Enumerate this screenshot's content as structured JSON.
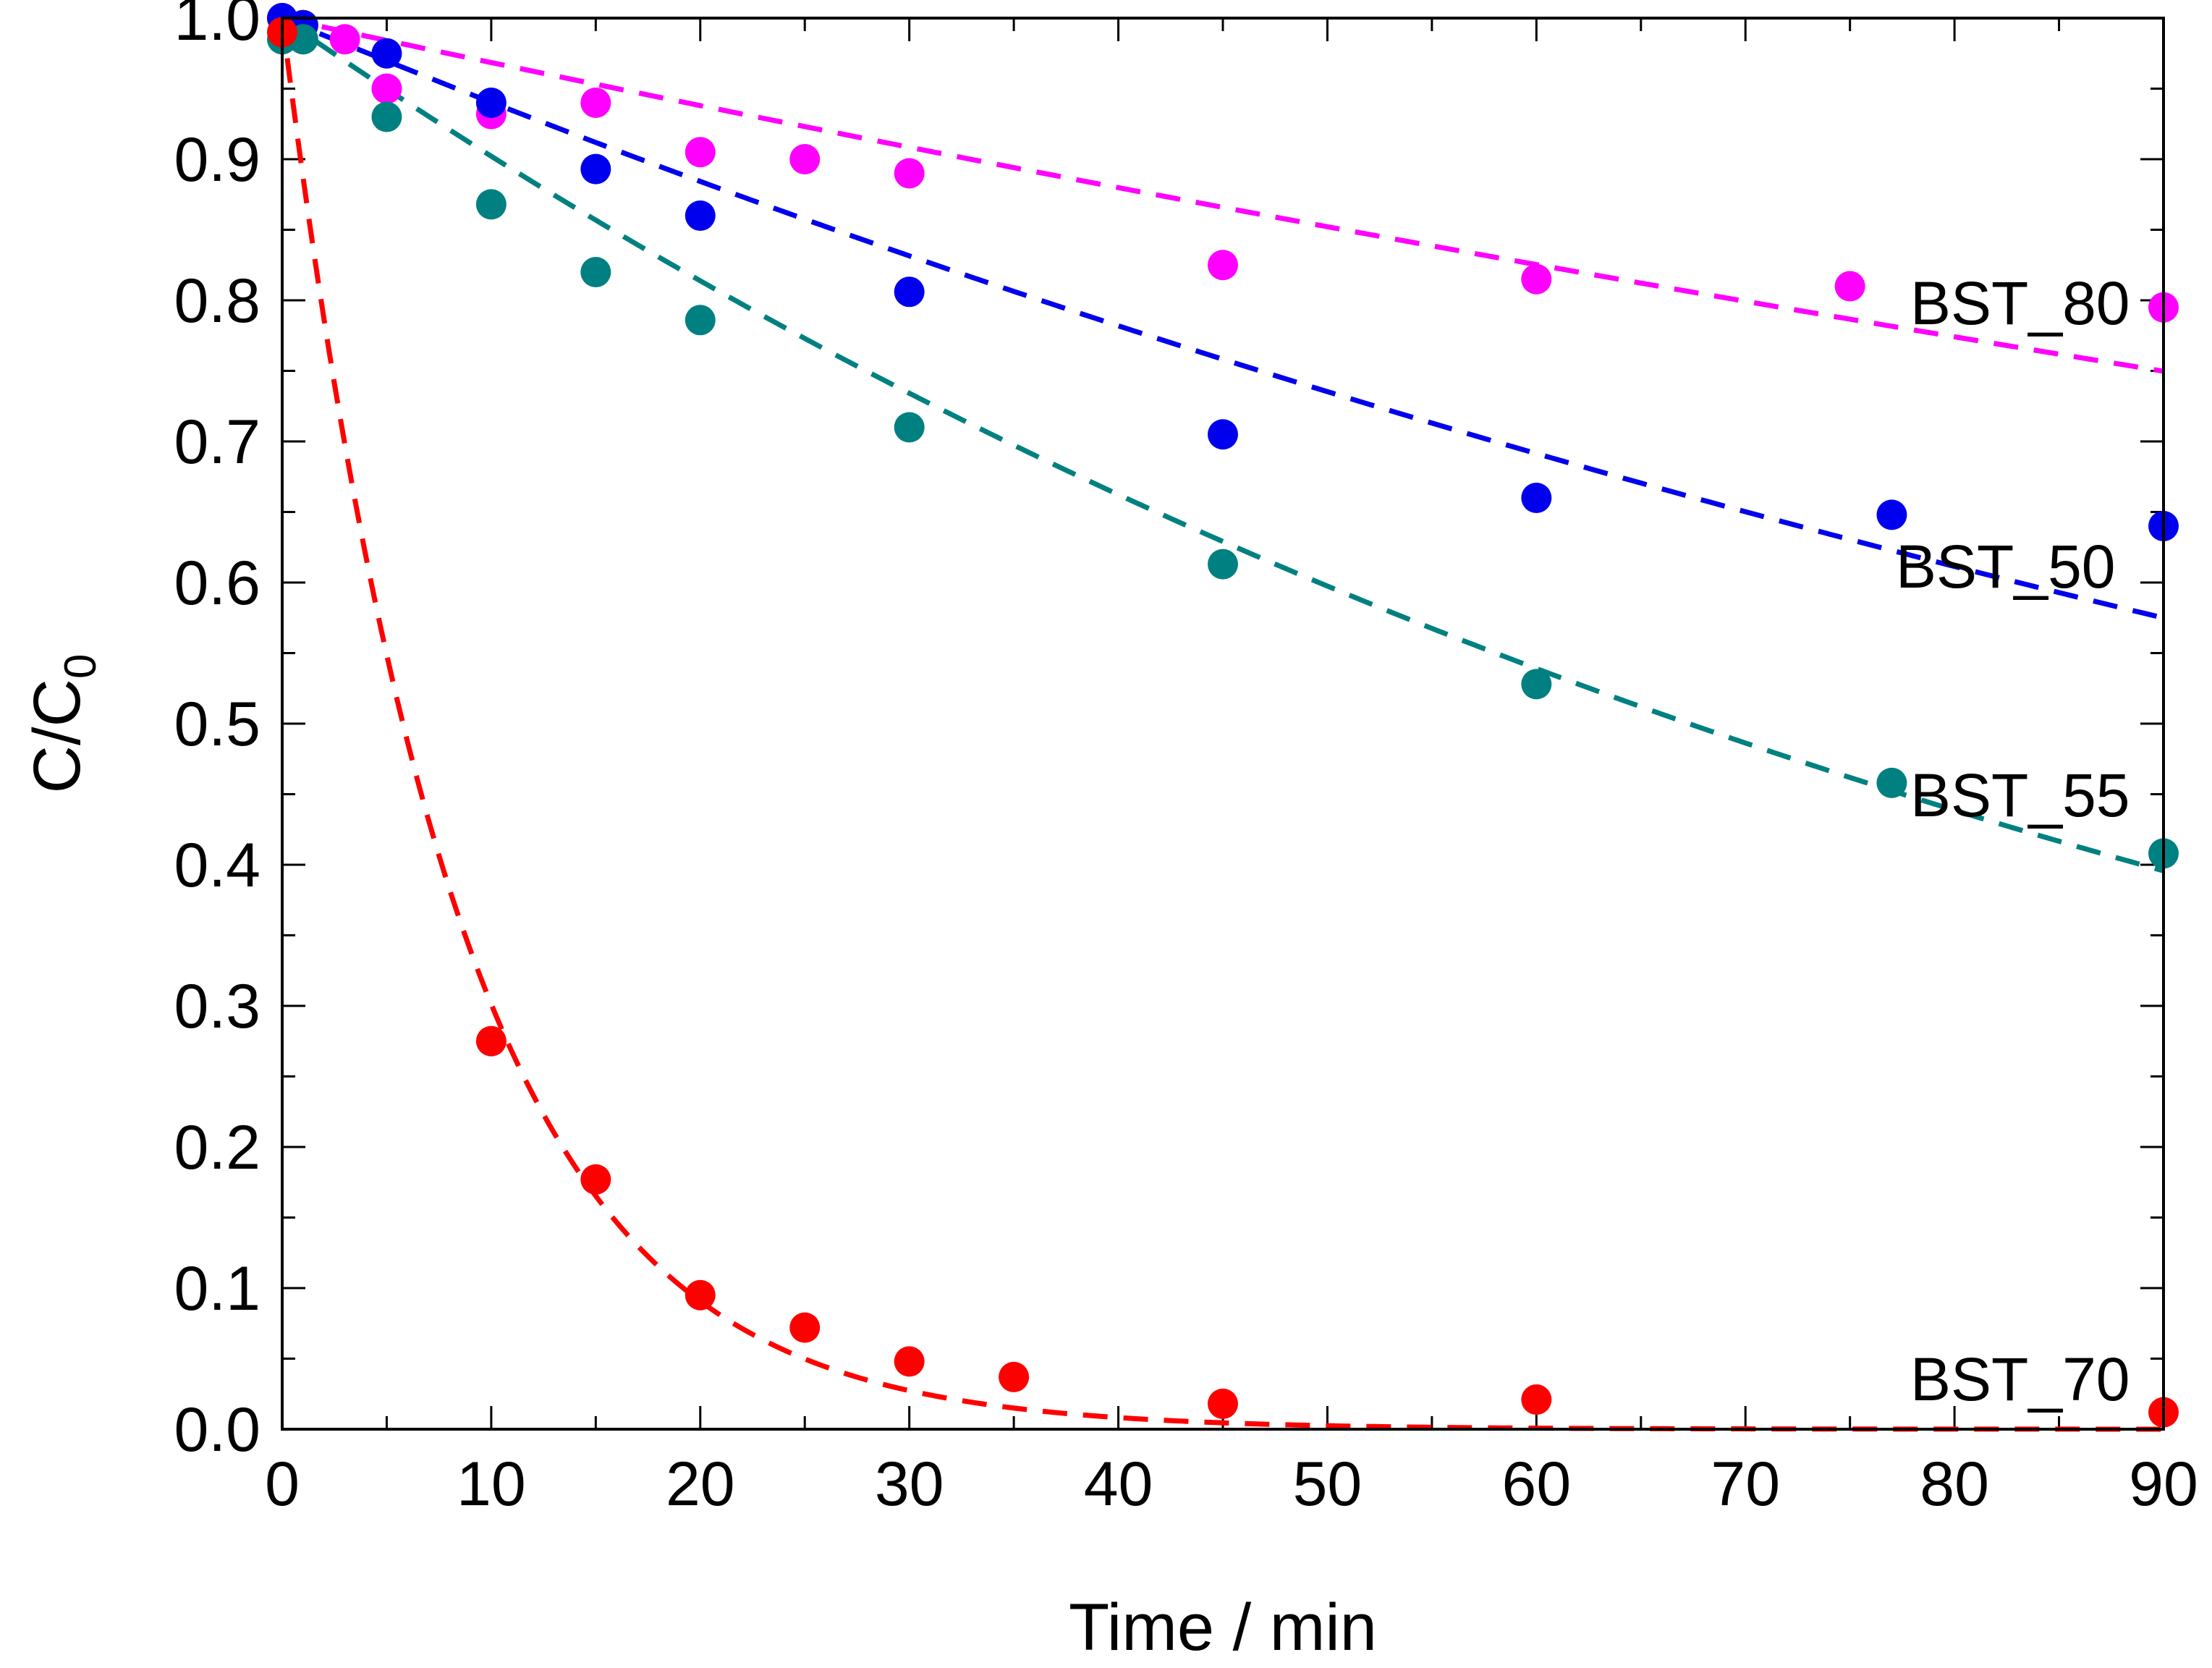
{
  "chart_data": {
    "type": "scatter",
    "title": "",
    "xlabel": "Time / min",
    "ylabel": {
      "main": "C/C",
      "subscript": "0"
    },
    "xlim": [
      0,
      90
    ],
    "ylim": [
      0.0,
      1.0
    ],
    "x_ticks": [
      0,
      10,
      20,
      30,
      40,
      50,
      60,
      70,
      80,
      90
    ],
    "x_tick_labels": [
      "0",
      "10",
      "20",
      "30",
      "40",
      "50",
      "60",
      "70",
      "80",
      "90"
    ],
    "y_ticks": [
      0.0,
      0.1,
      0.2,
      0.3,
      0.4,
      0.5,
      0.6,
      0.7,
      0.8,
      0.9,
      1.0
    ],
    "y_tick_labels": [
      "0.0",
      "0.1",
      "0.2",
      "0.3",
      "0.4",
      "0.5",
      "0.6",
      "0.7",
      "0.8",
      "0.9",
      "1.0"
    ],
    "grid": false,
    "legend": "none (inline series labels at right)",
    "series": [
      {
        "name": "BST_80",
        "label": "BST_80",
        "color": "#ff00ff",
        "fit": "exponential decay, dashed",
        "fit_k": 0.0032,
        "x": [
          0,
          1,
          3,
          5,
          10,
          15,
          20,
          25,
          30,
          45,
          60,
          75,
          90
        ],
        "y": [
          1.0,
          0.995,
          0.985,
          0.95,
          0.932,
          0.94,
          0.905,
          0.9,
          0.89,
          0.825,
          0.815,
          0.81,
          0.795
        ]
      },
      {
        "name": "BST_50",
        "label": "BST_50",
        "color": "#0000ee",
        "fit": "exponential decay, dashed",
        "fit_k": 0.00615,
        "x": [
          0,
          1,
          5,
          10,
          15,
          20,
          30,
          45,
          60,
          77,
          90
        ],
        "y": [
          1.0,
          0.995,
          0.975,
          0.94,
          0.893,
          0.86,
          0.806,
          0.705,
          0.66,
          0.648,
          0.64
        ]
      },
      {
        "name": "BST_55",
        "label": "BST_55",
        "color": "#008080",
        "fit": "exponential decay, dashed",
        "fit_k": 0.0103,
        "x": [
          0,
          1,
          5,
          10,
          15,
          20,
          30,
          45,
          60,
          77,
          90
        ],
        "y": [
          0.985,
          0.985,
          0.93,
          0.868,
          0.82,
          0.786,
          0.71,
          0.613,
          0.528,
          0.458,
          0.408
        ]
      },
      {
        "name": "BST_70",
        "label": "BST_70",
        "color": "#ff0000",
        "fit": "exponential decay, dashed",
        "fit_k": 0.12,
        "x": [
          0,
          10,
          15,
          20,
          25,
          30,
          35,
          45,
          60,
          90
        ],
        "y": [
          0.99,
          0.275,
          0.177,
          0.095,
          0.072,
          0.048,
          0.037,
          0.018,
          0.021,
          0.012
        ]
      }
    ]
  }
}
